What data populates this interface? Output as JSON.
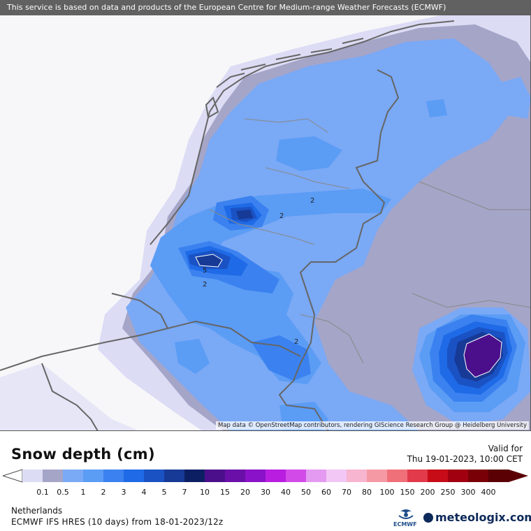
{
  "map": {
    "notice": "This service is based on data and products of the European Centre for Medium-range Weather Forecasts (ECMWF)",
    "attribution": "Map data © OpenStreetMap contributors, rendering GIScience Research Group @ Heidelberg University",
    "contour_labels": [
      "2",
      "2",
      "2",
      "5",
      "2"
    ]
  },
  "legend": {
    "title": "Snow depth (cm)",
    "valid_label": "Valid for",
    "valid_date": "Thu 19-01-2023, 10:00 CET",
    "levels": [
      "0.1",
      "0.5",
      "1",
      "2",
      "3",
      "4",
      "5",
      "7",
      "10",
      "15",
      "20",
      "30",
      "40",
      "50",
      "60",
      "70",
      "80",
      "100",
      "150",
      "200",
      "250",
      "300",
      "400"
    ],
    "colors": [
      "#dcdcf5",
      "#a5a5c8",
      "#7aa9f5",
      "#5b9cf5",
      "#3b82f0",
      "#1f6ae6",
      "#1a52c4",
      "#173a96",
      "#0d1f63",
      "#4b0f8c",
      "#6a0fa8",
      "#8a12c8",
      "#b81de0",
      "#d24ae8",
      "#e39af0",
      "#f2c6f5",
      "#f7b5cf",
      "#f59aa5",
      "#f0707a",
      "#e23a4a",
      "#c70c18",
      "#a00010",
      "#7a0008",
      "#5a0005"
    ]
  },
  "footer": {
    "region": "Netherlands",
    "model": "ECMWF IFS HRES (10 days) from 18-01-2023/12z",
    "ecmwf_label": "ECMWF",
    "brand": "meteologix.com"
  }
}
